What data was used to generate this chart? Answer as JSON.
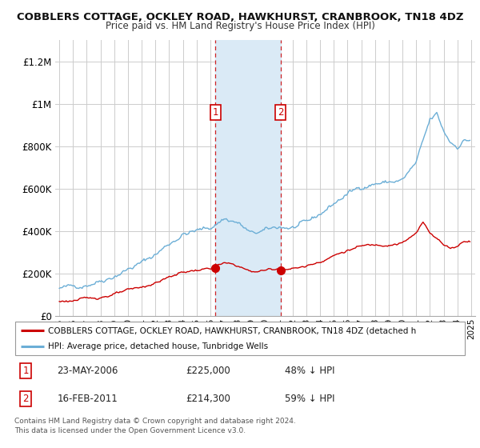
{
  "title": "COBBLERS COTTAGE, OCKLEY ROAD, HAWKHURST, CRANBROOK, TN18 4DZ",
  "subtitle": "Price paid vs. HM Land Registry's House Price Index (HPI)",
  "background_color": "#ffffff",
  "plot_bg_color": "#ffffff",
  "grid_color": "#cccccc",
  "hpi_color": "#6baed6",
  "price_color": "#cc0000",
  "shade_color": "#daeaf6",
  "transaction1": {
    "date_num": 2006.38,
    "price": 225000,
    "label": "1"
  },
  "transaction2": {
    "date_num": 2011.12,
    "price": 214300,
    "label": "2"
  },
  "ylim": [
    0,
    1300000
  ],
  "yticks": [
    0,
    200000,
    400000,
    600000,
    800000,
    1000000,
    1200000
  ],
  "ytick_labels": [
    "£0",
    "£200K",
    "£400K",
    "£600K",
    "£800K",
    "£1M",
    "£1.2M"
  ],
  "legend_entries": [
    "COBBLERS COTTAGE, OCKLEY ROAD, HAWKHURST, CRANBROOK, TN18 4DZ (detached h",
    "HPI: Average price, detached house, Tunbridge Wells"
  ],
  "table_rows": [
    {
      "num": "1",
      "date": "23-MAY-2006",
      "price": "£225,000",
      "pct": "48% ↓ HPI"
    },
    {
      "num": "2",
      "date": "16-FEB-2011",
      "price": "£214,300",
      "pct": "59% ↓ HPI"
    }
  ],
  "footer": "Contains HM Land Registry data © Crown copyright and database right 2024.\nThis data is licensed under the Open Government Licence v3.0."
}
